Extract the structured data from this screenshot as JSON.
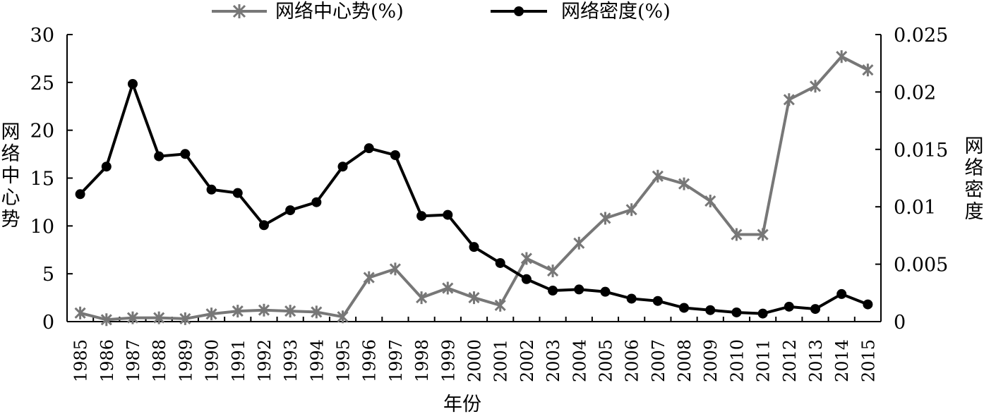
{
  "chart_data": {
    "type": "line",
    "xlabel": "年份",
    "ylabel_left": "网络中心势",
    "ylabel_right": "网络密度",
    "legend_position": "top-center",
    "grid": false,
    "x": [
      "1985",
      "1986",
      "1987",
      "1988",
      "1989",
      "1990",
      "1991",
      "1992",
      "1993",
      "1994",
      "1995",
      "1996",
      "1997",
      "1998",
      "1999",
      "2000",
      "2001",
      "2002",
      "2003",
      "2004",
      "2005",
      "2006",
      "2007",
      "2008",
      "2009",
      "2010",
      "2011",
      "2012",
      "2013",
      "2014",
      "2015"
    ],
    "ylim_left": [
      0,
      30
    ],
    "yticks_left": [
      "0",
      "5",
      "10",
      "15",
      "20",
      "25",
      "30"
    ],
    "ylim_right": [
      0,
      0.025
    ],
    "yticks_right": [
      "0",
      "0.005",
      "0.01",
      "0.015",
      "0.02",
      "0.025"
    ],
    "series": [
      {
        "name": "网络中心势(%)",
        "axis": "left",
        "marker": "star",
        "color": "#777777",
        "values": [
          0.9,
          0.2,
          0.4,
          0.4,
          0.3,
          0.8,
          1.1,
          1.2,
          1.1,
          1.0,
          0.5,
          4.6,
          5.5,
          2.5,
          3.5,
          2.5,
          1.7,
          6.6,
          5.3,
          8.2,
          10.8,
          11.7,
          15.2,
          14.4,
          12.6,
          9.1,
          9.1,
          23.2,
          24.6,
          27.7,
          26.3
        ]
      },
      {
        "name": "网络密度(%)",
        "axis": "right",
        "marker": "circle",
        "color": "#000000",
        "values": [
          0.0111,
          0.0135,
          0.0207,
          0.0144,
          0.0146,
          0.0115,
          0.0112,
          0.0084,
          0.0097,
          0.0104,
          0.0135,
          0.0151,
          0.0145,
          0.0092,
          0.0093,
          0.0065,
          0.0051,
          0.0037,
          0.0027,
          0.0028,
          0.0026,
          0.002,
          0.0018,
          0.0012,
          0.001,
          0.0008,
          0.0007,
          0.0013,
          0.0011,
          0.0024,
          0.0015
        ]
      }
    ]
  }
}
